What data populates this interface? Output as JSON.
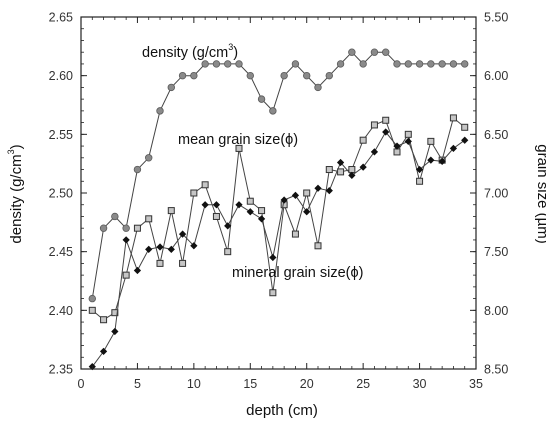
{
  "chart_data": {
    "type": "line",
    "title": "",
    "xlabel": "depth (cm)",
    "ylabel_left": "density (g/cm³)",
    "ylabel_left_parts": {
      "main": "density (g/cm",
      "sup": "3",
      "close": ")"
    },
    "ylabel_right": "grain size (µm)",
    "xlim": [
      0,
      35
    ],
    "ylim_left": [
      2.35,
      2.65
    ],
    "ylim_right": [
      8.5,
      5.5
    ],
    "grid": false,
    "legend": "none",
    "x_ticks": [
      "0",
      "5",
      "10",
      "15",
      "20",
      "25",
      "30",
      "35"
    ],
    "y_left_ticks": [
      "2.35",
      "2.40",
      "2.45",
      "2.50",
      "2.55",
      "2.60",
      "2.65"
    ],
    "y_right_ticks": [
      "8.50",
      "8.00",
      "7.50",
      "7.00",
      "6.50",
      "6.00",
      "5.50"
    ],
    "annotations": {
      "density": {
        "main": "density (g/cm",
        "sup": "3",
        "close": ")"
      },
      "mean": "mean grain size(ϕ)",
      "mineral": "mineral grain size(ϕ)"
    },
    "x": [
      1,
      2,
      3,
      4,
      5,
      6,
      7,
      8,
      9,
      10,
      11,
      12,
      13,
      14,
      15,
      16,
      17,
      18,
      19,
      20,
      21,
      22,
      23,
      24,
      25,
      26,
      27,
      28,
      29,
      30,
      31,
      32,
      33,
      34
    ],
    "series": [
      {
        "name": "density (g/cm³)",
        "axis": "left",
        "marker": "circle",
        "values": [
          2.41,
          2.47,
          2.48,
          2.47,
          2.52,
          2.53,
          2.57,
          2.59,
          2.6,
          2.6,
          2.61,
          2.61,
          2.61,
          2.61,
          2.6,
          2.58,
          2.57,
          2.6,
          2.61,
          2.6,
          2.59,
          2.6,
          2.61,
          2.62,
          2.61,
          2.62,
          2.62,
          2.61,
          2.61,
          2.61,
          2.61,
          2.61,
          2.61,
          2.61
        ]
      },
      {
        "name": "mean grain size(ϕ)",
        "axis": "right",
        "marker": "square",
        "values": [
          8.0,
          8.08,
          8.02,
          7.7,
          7.3,
          7.22,
          7.6,
          7.15,
          7.6,
          7.0,
          6.93,
          7.2,
          7.5,
          6.62,
          7.07,
          7.15,
          7.85,
          7.1,
          7.35,
          7.0,
          7.45,
          6.8,
          6.82,
          6.8,
          6.55,
          6.42,
          6.38,
          6.65,
          6.5,
          6.9,
          6.56,
          6.72,
          6.36,
          6.44
        ]
      },
      {
        "name": "mineral grain size(ϕ)",
        "axis": "right",
        "marker": "diamond",
        "values": [
          8.48,
          8.35,
          8.18,
          7.4,
          7.66,
          7.48,
          7.46,
          7.48,
          7.35,
          7.45,
          7.1,
          7.1,
          7.28,
          7.1,
          7.16,
          7.22,
          7.55,
          7.06,
          7.02,
          7.16,
          6.96,
          6.98,
          6.74,
          6.85,
          6.78,
          6.65,
          6.48,
          6.6,
          6.56,
          6.8,
          6.72,
          6.73,
          6.62,
          6.55
        ]
      }
    ]
  }
}
